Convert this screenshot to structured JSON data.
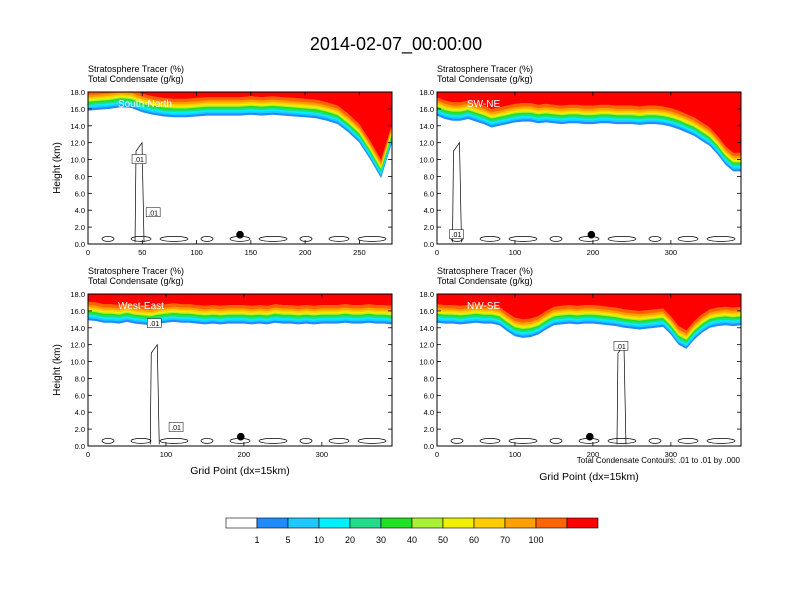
{
  "figure_title": "2014-02-07_00:00:00",
  "colors": {
    "levels": [
      "#ffffff",
      "#1e8cff",
      "#1ec8ff",
      "#00f0ff",
      "#22dc8c",
      "#22e022",
      "#aaf034",
      "#f0f000",
      "#ffcc00",
      "#ffa000",
      "#ff6400",
      "#ff0000"
    ],
    "contour": "#000000",
    "marker": "#000000"
  },
  "colorbar": {
    "labels": [
      "1",
      "5",
      "10",
      "20",
      "30",
      "40",
      "50",
      "60",
      "70",
      "100"
    ]
  },
  "footnote": "Total Condensate Contours: .01 to .01 by .000",
  "chart_data": [
    {
      "type": "heatmap",
      "title_line1": "Stratosphere Tracer   (%)",
      "title_line2": "Total Condensate   (g/kg)",
      "panel_label": "South-North",
      "ylabel": "Height (km)",
      "xlabel": "",
      "xlim": [
        0,
        280
      ],
      "ylim": [
        0,
        18
      ],
      "xticks": [
        "0",
        "50",
        "100",
        "150",
        "200",
        "250"
      ],
      "xtick_values": [
        0,
        50,
        100,
        150,
        200,
        250
      ],
      "yticks": [
        "0.0",
        "2.0",
        "4.0",
        "6.0",
        "8.0",
        "10.0",
        "12.0",
        "14.0",
        "16.0",
        "18.0"
      ],
      "contour_labels": [
        {
          "text": ".01",
          "x": 47,
          "y": 10.0
        },
        {
          "text": ".01",
          "x": 60,
          "y": 3.7
        }
      ],
      "marker": {
        "x": 140,
        "y": 1.1
      },
      "tracer_base_km": [
        15.8,
        15.9,
        16.0,
        16.2,
        16.1,
        15.6,
        15.3,
        15.1,
        15.0,
        15.0,
        15.1,
        15.2,
        15.2,
        15.2,
        15.2,
        15.3,
        15.2,
        15.3,
        15.2,
        15.1,
        15.0,
        14.9,
        14.6,
        14.2,
        13.2,
        12.0,
        10.0,
        7.8,
        12.0
      ],
      "bottom": 14.0
    },
    {
      "type": "heatmap",
      "title_line1": "Stratosphere Tracer   (%)",
      "title_line2": "Total Condensate   (g/kg)",
      "panel_label": "SW-NE",
      "ylabel": "",
      "xlabel": "",
      "xlim": [
        0,
        390
      ],
      "ylim": [
        0,
        18
      ],
      "xticks": [
        "0",
        "100",
        "200",
        "300"
      ],
      "xtick_values": [
        0,
        100,
        200,
        300
      ],
      "yticks": [
        "0.0",
        "2.0",
        "4.0",
        "6.0",
        "8.0",
        "10.0",
        "12.0",
        "14.0",
        "16.0",
        "18.0"
      ],
      "contour_labels": [
        {
          "text": ".01",
          "x": 25,
          "y": 1.1
        }
      ],
      "marker": {
        "x": 198,
        "y": 1.1
      },
      "tracer_base_km": [
        15.2,
        14.8,
        14.6,
        14.6,
        14.8,
        14.5,
        14.2,
        13.8,
        14.0,
        14.2,
        14.4,
        14.5,
        14.5,
        14.3,
        14.4,
        14.3,
        14.2,
        14.3,
        14.3,
        14.2,
        14.2,
        14.3,
        14.3,
        14.2,
        14.2,
        14.2,
        14.1,
        14.2,
        14.2,
        14.1,
        13.9,
        13.6,
        13.2,
        12.8,
        12.2,
        11.6,
        10.6,
        9.4,
        8.6,
        8.6
      ],
      "bottom": 14.0
    },
    {
      "type": "heatmap",
      "title_line1": "Stratosphere Tracer   (%)",
      "title_line2": "Total Condensate   (g/kg)",
      "panel_label": "West-East",
      "ylabel": "Height (km)",
      "xlabel": "Grid Point (dx=15km)",
      "xlim": [
        0,
        390
      ],
      "ylim": [
        0,
        18
      ],
      "xticks": [
        "0",
        "100",
        "200",
        "300"
      ],
      "xtick_values": [
        0,
        100,
        200,
        300
      ],
      "yticks": [
        "0.0",
        "2.0",
        "4.0",
        "6.0",
        "8.0",
        "10.0",
        "12.0",
        "14.0",
        "16.0",
        "18.0"
      ],
      "contour_labels": [
        {
          "text": ".01",
          "x": 85,
          "y": 14.5
        },
        {
          "text": ".01",
          "x": 113,
          "y": 2.2
        }
      ],
      "marker": {
        "x": 196,
        "y": 1.1
      },
      "tracer_base_km": [
        14.9,
        14.8,
        14.6,
        14.6,
        14.5,
        14.7,
        14.5,
        14.4,
        14.3,
        14.5,
        14.6,
        14.7,
        14.6,
        14.6,
        14.5,
        14.4,
        14.5,
        14.4,
        14.5,
        14.5,
        14.5,
        14.4,
        14.5,
        14.4,
        14.6,
        14.5,
        14.5,
        14.4,
        14.5,
        14.4,
        14.5,
        14.5,
        14.5,
        14.6,
        14.5,
        14.5,
        14.6,
        14.5,
        14.5,
        14.4
      ],
      "bottom": 14.0
    },
    {
      "type": "heatmap",
      "title_line1": "Stratosphere Tracer   (%)",
      "title_line2": "Total Condensate   (g/kg)",
      "panel_label": "NW-SE",
      "ylabel": "",
      "xlabel": "Grid Point (dx=15km)",
      "xlim": [
        0,
        390
      ],
      "ylim": [
        0,
        18
      ],
      "xticks": [
        "0",
        "100",
        "200",
        "300"
      ],
      "xtick_values": [
        0,
        100,
        200,
        300
      ],
      "yticks": [
        "0.0",
        "2.0",
        "4.0",
        "6.0",
        "8.0",
        "10.0",
        "12.0",
        "14.0",
        "16.0",
        "18.0"
      ],
      "contour_labels": [
        {
          "text": ".01",
          "x": 236,
          "y": 11.8
        }
      ],
      "marker": {
        "x": 196,
        "y": 1.1
      },
      "tracer_base_km": [
        14.6,
        14.5,
        14.5,
        14.4,
        14.5,
        14.6,
        14.5,
        14.5,
        14.3,
        13.6,
        13.0,
        12.8,
        12.9,
        13.2,
        13.8,
        14.3,
        14.4,
        14.5,
        14.4,
        14.5,
        14.5,
        14.4,
        14.3,
        14.2,
        14.0,
        13.9,
        13.8,
        13.9,
        14.0,
        14.1,
        13.2,
        12.0,
        11.5,
        12.6,
        13.4,
        14.0,
        14.2,
        14.3,
        14.2,
        14.3
      ],
      "bottom": 14.0
    }
  ]
}
